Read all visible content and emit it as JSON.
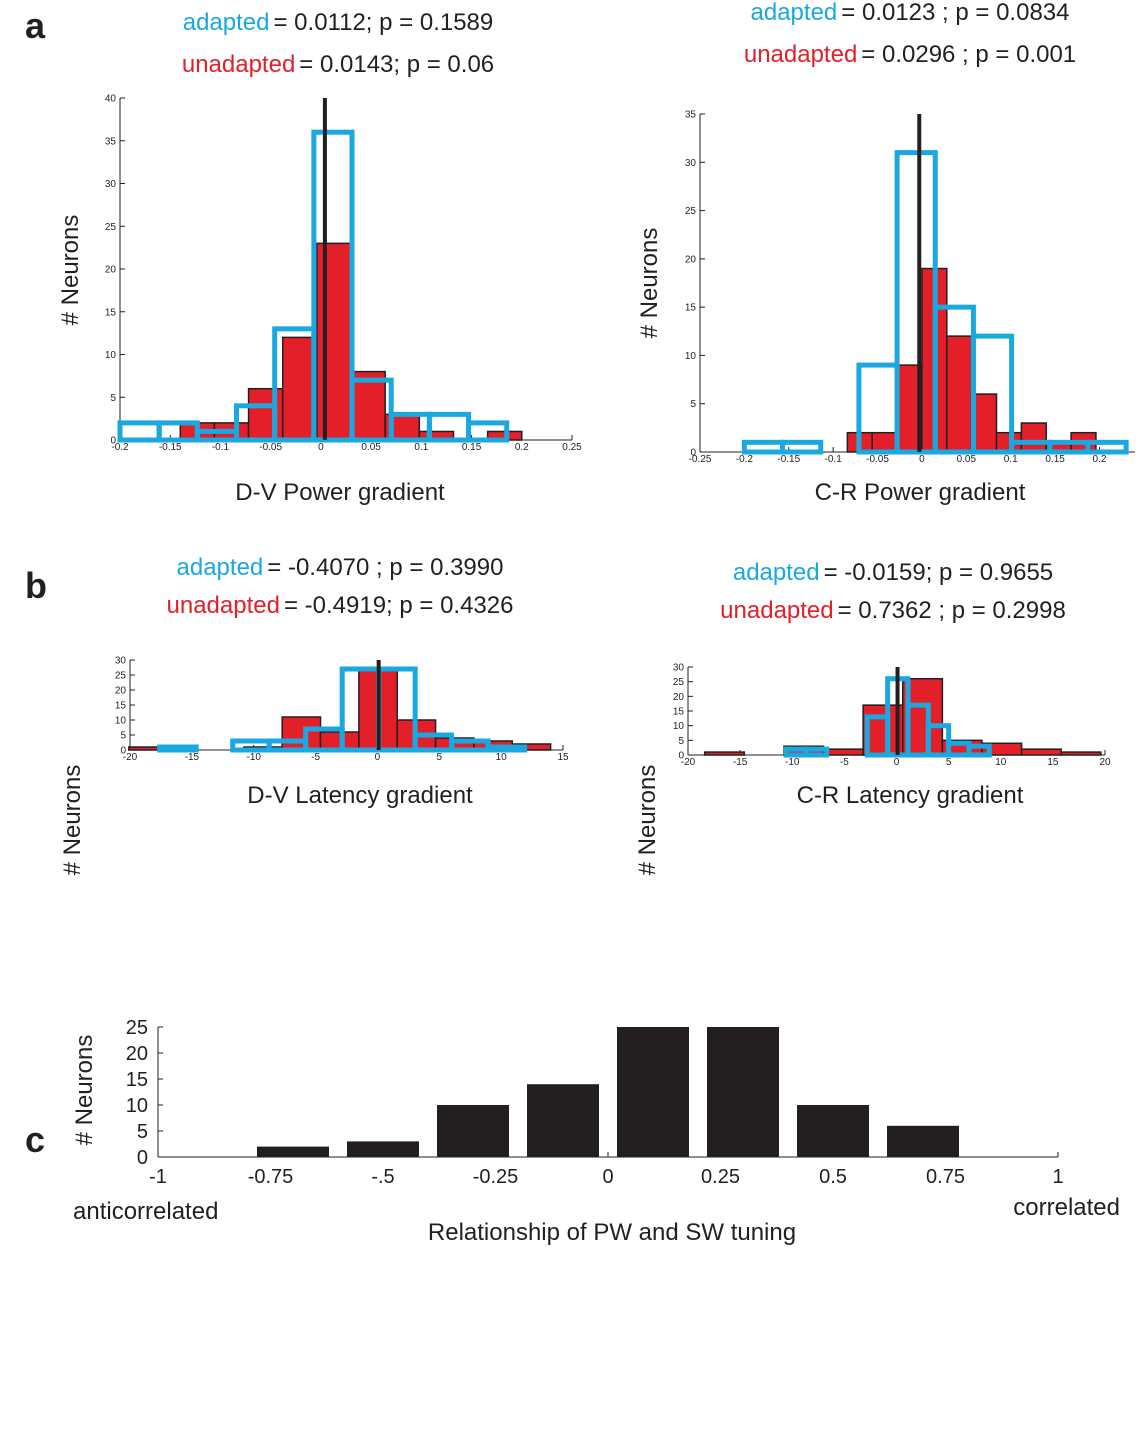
{
  "chart_data": [
    {
      "type": "histogram",
      "panel": "a",
      "xlabel": "D-V  Power gradient",
      "ylabel": "# Neurons",
      "xlim": [
        -0.2,
        0.25
      ],
      "xticks": [
        -0.2,
        -0.15,
        -0.1,
        -0.05,
        0,
        0.05,
        0.1,
        0.15,
        0.2,
        0.25
      ],
      "ylim": [
        0,
        40
      ],
      "yticks": [
        0,
        5,
        10,
        15,
        20,
        25,
        30,
        35,
        40
      ],
      "vline": 0.004,
      "series": [
        {
          "name": "adapted",
          "stat": "= 0.0112; p = 0.1589",
          "color": "#1ba8e0",
          "style": "outline",
          "bins": [
            -0.2,
            -0.161,
            -0.123,
            -0.084,
            -0.046,
            -0.007,
            0.031,
            0.07,
            0.108,
            0.147,
            0.185
          ],
          "values": [
            2,
            2,
            1,
            4,
            13,
            36,
            7,
            3,
            3,
            2
          ]
        },
        {
          "name": "unadapted",
          "stat": "= 0.0143; p = 0.06",
          "color": "#e3202a",
          "style": "filled",
          "bins": [
            -0.14,
            -0.106,
            -0.072,
            -0.038,
            -0.004,
            0.03,
            0.064,
            0.098,
            0.132,
            0.166,
            0.2
          ],
          "values": [
            2,
            2,
            6,
            12,
            23,
            8,
            3,
            1,
            0,
            1
          ]
        }
      ]
    },
    {
      "type": "histogram",
      "xlabel": "C-R  Power gradient",
      "ylabel": "# Neurons",
      "xlim": [
        -0.25,
        0.24
      ],
      "xticks": [
        -0.25,
        -0.2,
        -0.15,
        -0.1,
        -0.05,
        0,
        0.05,
        0.1,
        0.15,
        0.2
      ],
      "ylim": [
        0,
        35
      ],
      "yticks": [
        0,
        5,
        10,
        15,
        20,
        25,
        30,
        35
      ],
      "vline": -0.003,
      "series": [
        {
          "name": "adapted",
          "stat": "= 0.0123 ; p = 0.0834",
          "color": "#1ba8e0",
          "style": "outline",
          "bins": [
            -0.2,
            -0.157,
            -0.114,
            -0.071,
            -0.028,
            0.015,
            0.058,
            0.101,
            0.144,
            0.187,
            0.23
          ],
          "values": [
            1,
            1,
            0,
            9,
            31,
            15,
            12,
            1,
            1,
            1
          ]
        },
        {
          "name": "unadapted",
          "stat": "= 0.0296 ; p = 0.001",
          "color": "#e3202a",
          "style": "filled",
          "bins": [
            -0.084,
            -0.056,
            -0.028,
            0,
            0.028,
            0.056,
            0.084,
            0.112,
            0.14,
            0.168,
            0.196
          ],
          "values": [
            2,
            2,
            9,
            19,
            12,
            6,
            2,
            3,
            1,
            2
          ]
        }
      ]
    },
    {
      "type": "histogram",
      "panel": "b",
      "xlabel": "D-V  Latency gradient",
      "ylabel": "# Neurons",
      "xlim": [
        -20,
        15
      ],
      "xticks": [
        -20,
        -15,
        -10,
        -5,
        0,
        5,
        10,
        15
      ],
      "ylim": [
        0,
        30
      ],
      "yticks": [
        0,
        5,
        10,
        15,
        20,
        25,
        30
      ],
      "vline": 0.1,
      "series": [
        {
          "name": "adapted",
          "stat": "= -0.4070 ; p = 0.3990",
          "color": "#1ba8e0",
          "style": "outline",
          "bins": [
            -17.6,
            -14.65,
            -11.7,
            -8.75,
            -5.8,
            -2.85,
            0.1,
            3.05,
            6,
            8.95,
            11.9
          ],
          "values": [
            1,
            0,
            3,
            3,
            7,
            27,
            27,
            5,
            3,
            1
          ]
        },
        {
          "name": "unadapted",
          "stat": "= -0.4919; p = 0.4326",
          "color": "#e3202a",
          "style": "filled",
          "bins": [
            -20.1,
            -17,
            -13.9,
            -10.8,
            -7.7,
            -4.6,
            -1.5,
            1.6,
            4.7,
            7.8,
            10.9,
            14
          ],
          "values": [
            1,
            0,
            0,
            1,
            11,
            6,
            27,
            10,
            4,
            3,
            2
          ]
        }
      ]
    },
    {
      "type": "histogram",
      "xlabel": "C-R  Latency gradient",
      "ylabel": "# Neurons",
      "xlim": [
        -20,
        20
      ],
      "xticks": [
        -20,
        -15,
        -10,
        -5,
        0,
        5,
        10,
        15,
        20
      ],
      "ylim": [
        0,
        30
      ],
      "yticks": [
        0,
        5,
        10,
        15,
        20,
        25,
        30
      ],
      "vline": 0.1,
      "series": [
        {
          "name": "adapted",
          "stat": "= -0.0159; p = 0.9655",
          "color": "#1ba8e0",
          "style": "outline",
          "bins": [
            -10.6,
            -8.65,
            -6.7,
            -4.75,
            -2.8,
            -0.85,
            1.1,
            3.05,
            5,
            6.95,
            8.9
          ],
          "values": [
            2,
            2,
            0,
            0,
            13,
            26,
            17,
            10,
            4,
            3
          ]
        },
        {
          "name": "unadapted",
          "stat": "= 0.7362 ; p = 0.2998",
          "color": "#e3202a",
          "style": "filled",
          "bins": [
            -18.4,
            -14.6,
            -10.8,
            -7,
            -3.2,
            0.6,
            4.4,
            8.2,
            12,
            15.8,
            19.6
          ],
          "values": [
            1,
            0,
            3,
            2,
            17,
            26,
            5,
            4,
            2,
            1
          ]
        }
      ]
    },
    {
      "type": "bar",
      "panel": "c",
      "xlabel": "Relationship of PW and SW tuning",
      "ylabel": "# Neurons",
      "left_label": "anticorrelated",
      "right_label": "correlated",
      "color": "#231f20",
      "xlim": [
        -1,
        1
      ],
      "xticks": [
        -1,
        -0.75,
        {
          "value": -0.5,
          "label": "-.5"
        },
        -0.25,
        0,
        0.25,
        0.5,
        0.75,
        1
      ],
      "ylim": [
        0,
        25
      ],
      "yticks": [
        0,
        5,
        10,
        15,
        20,
        25
      ],
      "x": [
        -0.7,
        -0.5,
        -0.3,
        -0.1,
        0.1,
        0.3,
        0.5,
        0.7
      ],
      "values": [
        2,
        3,
        10,
        14,
        25,
        25,
        10,
        6
      ]
    }
  ]
}
